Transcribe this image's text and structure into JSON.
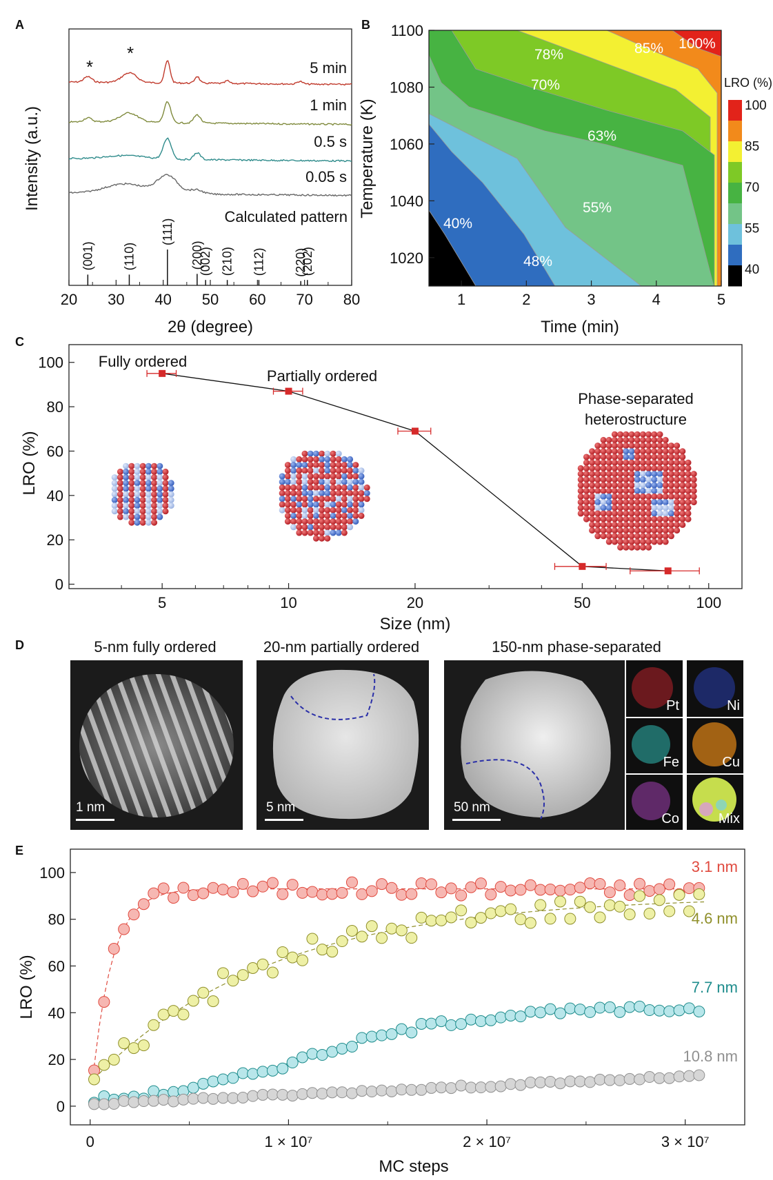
{
  "panelA": {
    "label": "A",
    "xlabel": "2θ (degree)",
    "ylabel": "Intensity (a.u.)",
    "xticks": [
      "20",
      "30",
      "40",
      "50",
      "60",
      "70",
      "80"
    ],
    "star": "*",
    "traces": [
      {
        "name": "5 min",
        "color": "#c0392b"
      },
      {
        "name": "1 min",
        "color": "#7f8a3c"
      },
      {
        "name": "0.5 s",
        "color": "#2e8b8b"
      },
      {
        "name": "0.05 s",
        "color": "#666666"
      }
    ],
    "calc_label": "Calculated pattern",
    "peaks": [
      {
        "hkl": "(001)",
        "x": 24,
        "h": 0.3
      },
      {
        "hkl": "(110)",
        "x": 32.8,
        "h": 0.3
      },
      {
        "hkl": "(111)",
        "x": 40.9,
        "h": 1.0
      },
      {
        "hkl": "(200)",
        "x": 47.2,
        "h": 0.32
      },
      {
        "hkl": "(002)",
        "x": 49,
        "h": 0.15
      },
      {
        "hkl": "(210)",
        "x": 53.6,
        "h": 0.15
      },
      {
        "hkl": "(112)",
        "x": 60.3,
        "h": 0.15
      },
      {
        "hkl": "(220)",
        "x": 69.2,
        "h": 0.12
      },
      {
        "hkl": "(202)",
        "x": 70.6,
        "h": 0.15
      }
    ]
  },
  "panelB": {
    "label": "B",
    "xlabel": "Time (min)",
    "ylabel": "Temperature (K)",
    "xticks": [
      "1",
      "2",
      "3",
      "4",
      "5"
    ],
    "yticks": [
      "1020",
      "1040",
      "1060",
      "1080",
      "1100"
    ],
    "cbar_title": "LRO (%)",
    "cbar_ticks": [
      "100",
      "85",
      "70",
      "55",
      "40"
    ],
    "region_labels": [
      "40%",
      "48%",
      "55%",
      "63%",
      "70%",
      "78%",
      "85%",
      "100%"
    ],
    "colors": {
      "c_black": "#000000",
      "c_40": "#2f6dbf",
      "c_48": "#6ec1dc",
      "c_55": "#73c487",
      "c_63": "#47b342",
      "c_70": "#7ec926",
      "c_78": "#f3f032",
      "c_85": "#f28a1b",
      "c_100": "#e2231a"
    }
  },
  "panelC": {
    "label": "C",
    "xlabel": "Size (nm)",
    "ylabel": "LRO (%)",
    "xticks": [
      "5",
      "10",
      "20",
      "50",
      "100"
    ],
    "yticks": [
      "0",
      "20",
      "40",
      "60",
      "80",
      "100"
    ],
    "annotations": [
      "Fully ordered",
      "Partially ordered",
      "Phase-separated",
      "heterostructure"
    ]
  },
  "panelD": {
    "label": "D",
    "titles": [
      "5-nm fully ordered",
      "20-nm partially ordered",
      "150-nm phase-separated"
    ],
    "scales": [
      "1 nm",
      "5 nm",
      "50 nm"
    ],
    "maps": [
      "Pt",
      "Ni",
      "Fe",
      "Cu",
      "Co",
      "Mix"
    ],
    "map_colors": [
      "#b8232c",
      "#2a3fb0",
      "#2fb9b2",
      "#d47f17",
      "#a23fb3",
      "#c6dd4d"
    ]
  },
  "panelE": {
    "label": "E",
    "xlabel": "MC steps",
    "ylabel": "LRO (%)",
    "xticks": [
      "0",
      "1 × 10⁷",
      "2 × 10⁷",
      "3 × 10⁷"
    ],
    "yticks": [
      "0",
      "20",
      "40",
      "60",
      "80",
      "100"
    ]
  },
  "chart_data": [
    {
      "type": "line",
      "title": "A",
      "xlabel": "2θ (degree)",
      "ylabel": "Intensity (a.u.)",
      "xlim": [
        20,
        80
      ],
      "series": [
        {
          "name": "5 min",
          "peaks_2theta": [
            24,
            32.8,
            40.9,
            47.2,
            53.6,
            69
          ]
        },
        {
          "name": "1 min",
          "peaks_2theta": [
            24,
            32.8,
            40.9,
            47.2
          ]
        },
        {
          "name": "0.5 s",
          "peaks_2theta": [
            40.9,
            47.2
          ]
        },
        {
          "name": "0.05 s",
          "peaks_2theta": [
            40.9
          ]
        }
      ],
      "reference": "Calculated pattern"
    },
    {
      "type": "area",
      "title": "B",
      "xlabel": "Time (min)",
      "ylabel": "Temperature (K)",
      "xlim": [
        0.5,
        5
      ],
      "ylim": [
        1010,
        1100
      ],
      "levels": [
        40,
        48,
        55,
        63,
        70,
        78,
        85,
        100
      ]
    },
    {
      "type": "scatter",
      "title": "C",
      "xlabel": "Size (nm)",
      "ylabel": "LRO (%)",
      "xscale": "log",
      "xlim": [
        3,
        120
      ],
      "ylim": [
        -2,
        108
      ],
      "x": [
        5,
        10,
        20,
        50,
        80
      ],
      "y": [
        95,
        87,
        69,
        8,
        6
      ],
      "xerr": [
        0.4,
        0.8,
        1.8,
        7,
        15
      ]
    },
    {
      "type": "scatter",
      "title": "E",
      "xlabel": "MC steps",
      "ylabel": "LRO (%)",
      "xlim": [
        -1000000,
        33000000
      ],
      "ylim": [
        -8,
        110
      ],
      "series": [
        {
          "name": "3.1 nm",
          "color": "#e04a3f",
          "fill": "#f6b7b2",
          "plateau": 93
        },
        {
          "name": "4.6 nm",
          "color": "#8f8f2a",
          "fill": "#eef0a6",
          "final": 88
        },
        {
          "name": "7.7 nm",
          "color": "#1e8c8c",
          "fill": "#b8e6ea",
          "final": 41
        },
        {
          "name": "10.8 nm",
          "color": "#909090",
          "fill": "#d6d6d6",
          "final": 13
        }
      ]
    }
  ]
}
